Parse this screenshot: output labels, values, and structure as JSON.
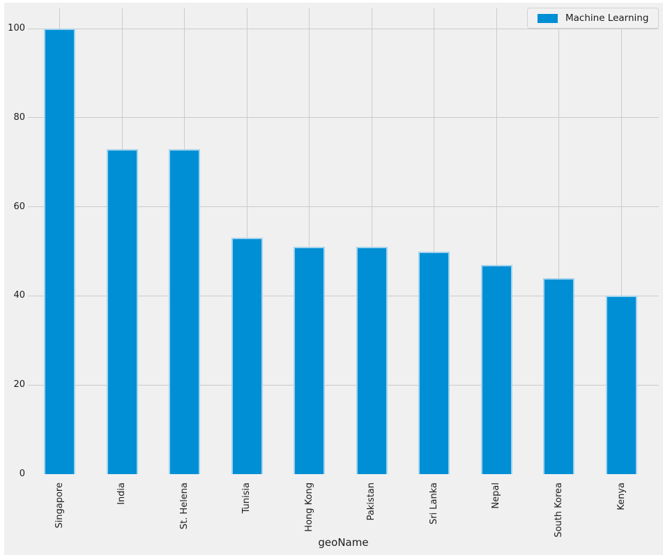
{
  "chart_data": {
    "type": "bar",
    "categories": [
      "Singapore",
      "India",
      "St. Helena",
      "Tunisia",
      "Hong Kong",
      "Pakistan",
      "Sri Lanka",
      "Nepal",
      "South Korea",
      "Kenya"
    ],
    "series": [
      {
        "name": "Machine Learning",
        "values": [
          100,
          73,
          73,
          53,
          51,
          51,
          50,
          47,
          44,
          40
        ]
      }
    ],
    "title": "",
    "xlabel": "geoName",
    "ylabel": "",
    "ylim": [
      0,
      104.5
    ],
    "yticks": [
      0,
      20,
      40,
      60,
      80,
      100
    ],
    "grid": true,
    "legend_position": "upper right",
    "style": {
      "background": "#f0f0f0",
      "bar_color": "#008fd5",
      "bar_edge_color": "#a5d3ec",
      "grid_color": "#cbcbcb",
      "text_color": "#1c1c1c"
    }
  },
  "legend": {
    "label": "Machine Learning"
  }
}
